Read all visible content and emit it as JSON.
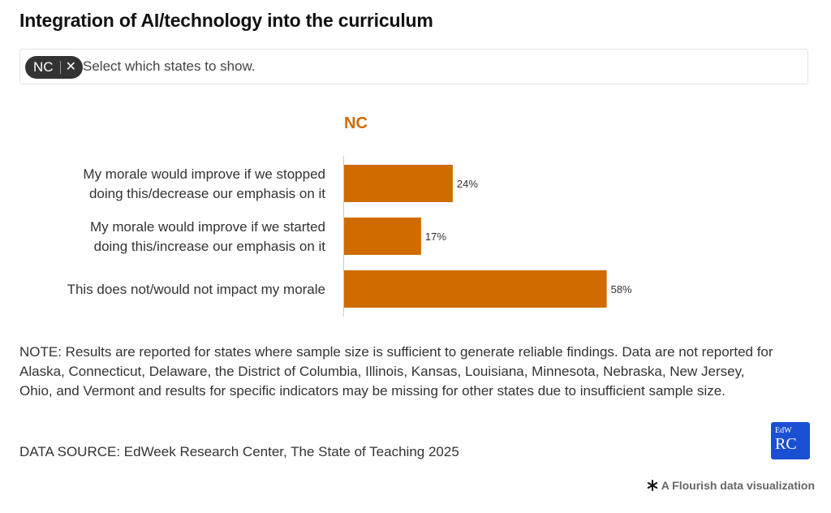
{
  "title": "Integration of AI/technology into the curriculum",
  "filter": {
    "chip_label": "NC",
    "chip_remove_glyph": "✕",
    "placeholder": "Select which states to show."
  },
  "chart_data": {
    "type": "bar",
    "orientation": "horizontal",
    "panel_title": "NC",
    "categories": [
      [
        "My morale would improve if we stopped",
        "doing this/decrease our emphasis on it"
      ],
      [
        "My morale would improve if we started",
        "doing this/increase our emphasis on it"
      ],
      [
        "This does not/would not impact my morale"
      ]
    ],
    "series": [
      {
        "values": [
          24,
          17,
          58
        ],
        "color": "#d06b00"
      }
    ],
    "value_labels": [
      "24%",
      "17%",
      "58%"
    ],
    "xlim": [
      0,
      100
    ],
    "grid": false
  },
  "note": "NOTE: Results are reported for states where sample size is sufficient to generate reliable findings. Data are not reported for Alaska, Connecticut, Delaware, the District of Columbia, Illinois, Kansas, Louisiana, Minnesota, Nebraska, New Jersey, Ohio, and Vermont and results for specific indicators may be missing for other states due to insufficient sample size.",
  "source": "DATA SOURCE: EdWeek Research Center, The State of Teaching 2025",
  "logo": {
    "top_text": "EdW",
    "main_text": "RC",
    "color": "#1a4fd4"
  },
  "attribution": {
    "icon": "asterisk-icon",
    "text": "A Flourish data visualization"
  }
}
